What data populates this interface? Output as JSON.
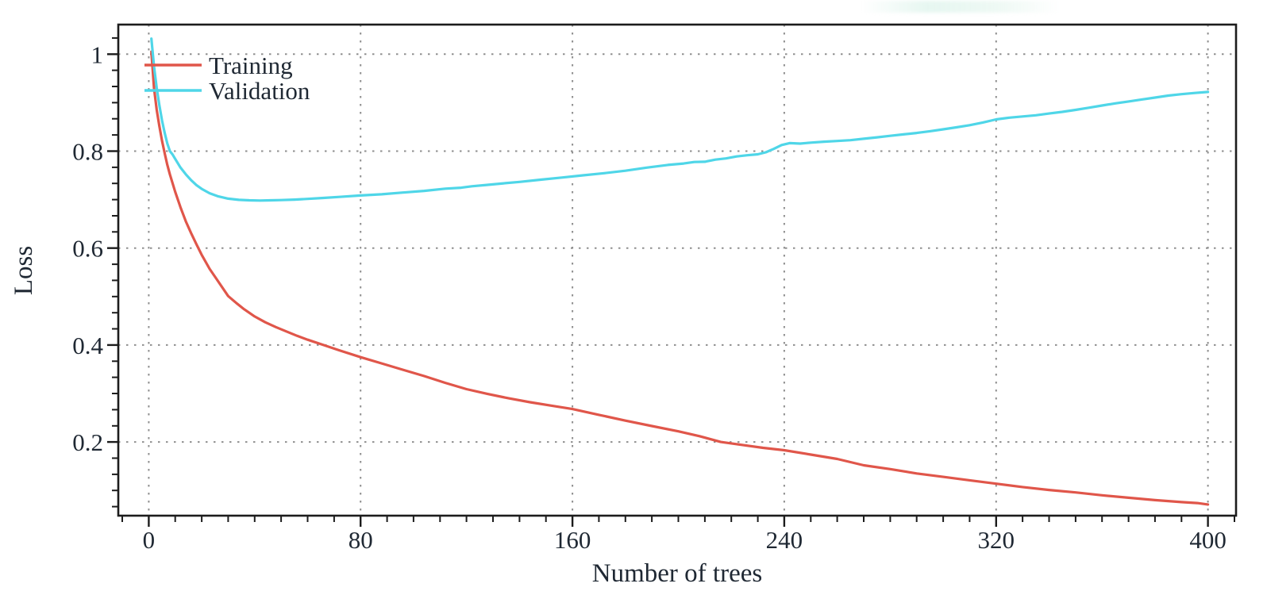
{
  "figure_title": "",
  "legend": {
    "entries": [
      "Training",
      "Validation"
    ]
  },
  "colors": {
    "training_line": "#e0564a",
    "validation_line": "#4fd6e8",
    "grid": "#8f8f8f",
    "axis": "#1c1c1c",
    "text": "#1f2833",
    "background": "#ffffff"
  },
  "chart_data": {
    "type": "line",
    "title": "",
    "xlabel": "Number of trees",
    "ylabel": "Loss",
    "xlim": [
      -11.5,
      410.6
    ],
    "ylim": [
      0.048,
      1.061
    ],
    "grid": "dotted lines at major ticks, both axes",
    "legend_position": "inside top-left",
    "x_ticks": [
      [
        0,
        "0"
      ],
      [
        80,
        "80"
      ],
      [
        160,
        "160"
      ],
      [
        240,
        "240"
      ],
      [
        320,
        "320"
      ],
      [
        400,
        "400"
      ]
    ],
    "y_ticks": [
      [
        1,
        "1"
      ],
      [
        0.8,
        "0.8"
      ],
      [
        0.6,
        "0.6"
      ],
      [
        0.4,
        "0.4"
      ],
      [
        0.2,
        "0.2"
      ]
    ],
    "x_minor_step": 10,
    "y_minor_divisions": 6,
    "series": [
      {
        "name": "Training",
        "color": "#e0564a",
        "points": [
          [
            1,
            1.005
          ],
          [
            2,
            0.93
          ],
          [
            3,
            0.885
          ],
          [
            4,
            0.852
          ],
          [
            5,
            0.822
          ],
          [
            6,
            0.796
          ],
          [
            7,
            0.772
          ],
          [
            8,
            0.752
          ],
          [
            10,
            0.716
          ],
          [
            12,
            0.684
          ],
          [
            14,
            0.655
          ],
          [
            16,
            0.631
          ],
          [
            18,
            0.608
          ],
          [
            20,
            0.586
          ],
          [
            23,
            0.557
          ],
          [
            26,
            0.533
          ],
          [
            30,
            0.501
          ],
          [
            33,
            0.487
          ],
          [
            36,
            0.474
          ],
          [
            40,
            0.459
          ],
          [
            44,
            0.447
          ],
          [
            48,
            0.437
          ],
          [
            52,
            0.428
          ],
          [
            56,
            0.419
          ],
          [
            60,
            0.411
          ],
          [
            66,
            0.4
          ],
          [
            72,
            0.389
          ],
          [
            80,
            0.375
          ],
          [
            88,
            0.362
          ],
          [
            96,
            0.349
          ],
          [
            104,
            0.336
          ],
          [
            112,
            0.322
          ],
          [
            120,
            0.309
          ],
          [
            128,
            0.299
          ],
          [
            136,
            0.29
          ],
          [
            144,
            0.282
          ],
          [
            152,
            0.275
          ],
          [
            160,
            0.268
          ],
          [
            170,
            0.256
          ],
          [
            180,
            0.244
          ],
          [
            190,
            0.233
          ],
          [
            200,
            0.222
          ],
          [
            208,
            0.212
          ],
          [
            216,
            0.2
          ],
          [
            224,
            0.194
          ],
          [
            232,
            0.188
          ],
          [
            240,
            0.183
          ],
          [
            250,
            0.174
          ],
          [
            260,
            0.165
          ],
          [
            270,
            0.152
          ],
          [
            280,
            0.144
          ],
          [
            290,
            0.135
          ],
          [
            300,
            0.128
          ],
          [
            310,
            0.121
          ],
          [
            320,
            0.114
          ],
          [
            330,
            0.107
          ],
          [
            340,
            0.101
          ],
          [
            350,
            0.096
          ],
          [
            360,
            0.09
          ],
          [
            370,
            0.085
          ],
          [
            380,
            0.08
          ],
          [
            390,
            0.076
          ],
          [
            396,
            0.074
          ],
          [
            400,
            0.071
          ]
        ]
      },
      {
        "name": "Validation",
        "color": "#4fd6e8",
        "points": [
          [
            1,
            1.032
          ],
          [
            2,
            0.975
          ],
          [
            3,
            0.93
          ],
          [
            4,
            0.895
          ],
          [
            5,
            0.864
          ],
          [
            6,
            0.838
          ],
          [
            7,
            0.816
          ],
          [
            8,
            0.8
          ],
          [
            9,
            0.793
          ],
          [
            10,
            0.784
          ],
          [
            12,
            0.766
          ],
          [
            14,
            0.752
          ],
          [
            16,
            0.74
          ],
          [
            18,
            0.73
          ],
          [
            20,
            0.722
          ],
          [
            23,
            0.713
          ],
          [
            26,
            0.707
          ],
          [
            30,
            0.702
          ],
          [
            34,
            0.6995
          ],
          [
            38,
            0.6985
          ],
          [
            42,
            0.698
          ],
          [
            46,
            0.6985
          ],
          [
            50,
            0.699
          ],
          [
            55,
            0.7
          ],
          [
            60,
            0.7015
          ],
          [
            66,
            0.7035
          ],
          [
            72,
            0.7055
          ],
          [
            80,
            0.7085
          ],
          [
            88,
            0.711
          ],
          [
            96,
            0.7145
          ],
          [
            104,
            0.718
          ],
          [
            112,
            0.7225
          ],
          [
            118,
            0.7245
          ],
          [
            122,
            0.7275
          ],
          [
            128,
            0.7305
          ],
          [
            134,
            0.7335
          ],
          [
            140,
            0.7365
          ],
          [
            148,
            0.741
          ],
          [
            156,
            0.7455
          ],
          [
            164,
            0.75
          ],
          [
            172,
            0.7545
          ],
          [
            180,
            0.7595
          ],
          [
            188,
            0.766
          ],
          [
            196,
            0.7715
          ],
          [
            202,
            0.7745
          ],
          [
            206,
            0.7775
          ],
          [
            210,
            0.778
          ],
          [
            214,
            0.7825
          ],
          [
            218,
            0.785
          ],
          [
            222,
            0.789
          ],
          [
            226,
            0.7915
          ],
          [
            230,
            0.7935
          ],
          [
            233,
            0.7975
          ],
          [
            236,
            0.8045
          ],
          [
            239,
            0.8125
          ],
          [
            242,
            0.8165
          ],
          [
            246,
            0.8155
          ],
          [
            250,
            0.8175
          ],
          [
            255,
            0.8195
          ],
          [
            260,
            0.821
          ],
          [
            265,
            0.8225
          ],
          [
            270,
            0.8255
          ],
          [
            275,
            0.8285
          ],
          [
            280,
            0.8315
          ],
          [
            285,
            0.8345
          ],
          [
            290,
            0.8375
          ],
          [
            295,
            0.841
          ],
          [
            300,
            0.845
          ],
          [
            305,
            0.849
          ],
          [
            310,
            0.8535
          ],
          [
            315,
            0.859
          ],
          [
            320,
            0.8655
          ],
          [
            325,
            0.869
          ],
          [
            330,
            0.8715
          ],
          [
            335,
            0.874
          ],
          [
            340,
            0.8775
          ],
          [
            345,
            0.881
          ],
          [
            350,
            0.885
          ],
          [
            355,
            0.8895
          ],
          [
            360,
            0.894
          ],
          [
            365,
            0.8985
          ],
          [
            370,
            0.9025
          ],
          [
            375,
            0.9065
          ],
          [
            380,
            0.9105
          ],
          [
            385,
            0.9145
          ],
          [
            390,
            0.9175
          ],
          [
            395,
            0.92
          ],
          [
            400,
            0.922
          ]
        ]
      }
    ]
  }
}
